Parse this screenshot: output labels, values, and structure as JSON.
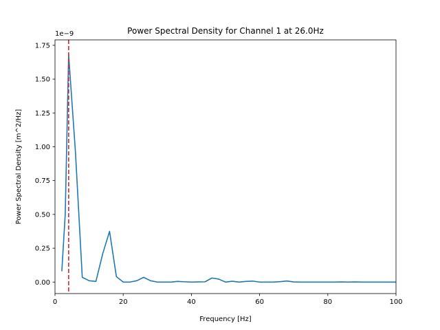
{
  "chart_data": {
    "type": "line",
    "title": "Power Spectral Density for Channel 1 at 26.0Hz",
    "xlabel": "Frequency [Hz]",
    "ylabel": "Power Spectral Density [m^2/Hz]",
    "y_offset_label": "1e−9",
    "xlim": [
      0,
      100
    ],
    "ylim": [
      -0.085,
      1.79
    ],
    "grid": false,
    "x_ticks": [
      0,
      20,
      40,
      60,
      80,
      100
    ],
    "x_tick_labels": [
      "0",
      "20",
      "40",
      "60",
      "80",
      "100"
    ],
    "y_ticks": [
      0.0,
      0.25,
      0.5,
      0.75,
      1.0,
      1.25,
      1.5,
      1.75
    ],
    "y_tick_labels": [
      "0.00",
      "0.25",
      "0.50",
      "0.75",
      "1.00",
      "1.25",
      "1.50",
      "1.75"
    ],
    "series": [
      {
        "color": "#1f77b4",
        "x": [
          2,
          3,
          4,
          6,
          8,
          10,
          12,
          14,
          16,
          18,
          20,
          22,
          24,
          26,
          28,
          30,
          32,
          34,
          36,
          38,
          40,
          42,
          44,
          46,
          48,
          50,
          52,
          54,
          56,
          58,
          60,
          62,
          64,
          66,
          68,
          70,
          72,
          74,
          76,
          78,
          80,
          82,
          84,
          86,
          88,
          90,
          92,
          94,
          96,
          98,
          100
        ],
        "y": [
          0.08,
          0.5,
          1.68,
          0.96,
          0.035,
          0.01,
          0.005,
          0.21,
          0.375,
          0.04,
          0.0,
          0.0,
          0.01,
          0.035,
          0.01,
          0.0,
          0.0,
          0.0,
          0.005,
          0.002,
          0.0,
          0.001,
          0.002,
          0.03,
          0.022,
          0.0,
          0.006,
          0.0,
          0.005,
          0.007,
          0.0,
          0.0,
          0.0,
          0.003,
          0.008,
          0.001,
          0.0,
          0.0,
          0.0,
          0.0,
          0.0,
          0.0,
          0.001,
          0.0,
          0.001,
          0.0,
          0.0,
          0.0,
          0.0,
          0.0,
          0.0
        ]
      }
    ],
    "vline": {
      "x": 4,
      "color": "#d62728",
      "style": "dashed"
    }
  }
}
